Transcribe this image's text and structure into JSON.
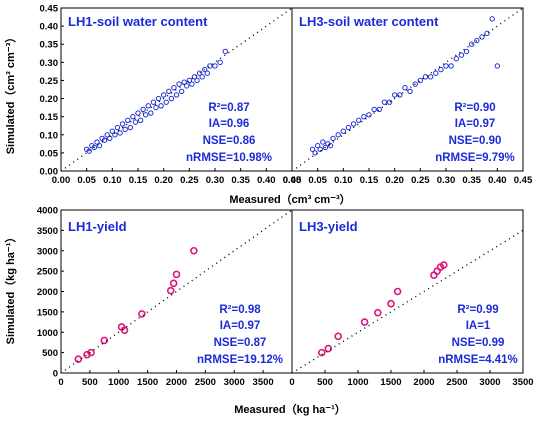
{
  "figure": {
    "top_ylabel": "Simulated（cm³ cm⁻³）",
    "top_xlabel": "Measured（cm³ cm⁻³）",
    "bottom_ylabel": "Simulated（kg ha⁻¹）",
    "bottom_xlabel": "Measured（kg ha⁻¹）"
  },
  "colors": {
    "soil_marker": "#1f32d6",
    "yield_marker": "#e0147a",
    "text_accent": "#1a2bd8"
  },
  "chart_data": [
    {
      "type": "scatter",
      "title": "LH1-soil water content",
      "xlim": [
        0,
        0.45
      ],
      "ylim": [
        0,
        0.45
      ],
      "xticks": [
        "0.00",
        "0.05",
        "0.10",
        "0.15",
        "0.20",
        "0.25",
        "0.30",
        "0.35",
        "0.40",
        "0.45"
      ],
      "yticks": [
        "0.00",
        "0.05",
        "0.10",
        "0.15",
        "0.20",
        "0.25",
        "0.30",
        "0.35",
        "0.40",
        "0.45"
      ],
      "one_to_one_line": true,
      "stats": {
        "r2": "R²=0.87",
        "ia": "IA=0.96",
        "nse": "NSE=0.86",
        "nrmse": "nRMSE=10.98%"
      },
      "series": [
        {
          "x": [
            0.05,
            0.055,
            0.06,
            0.065,
            0.07,
            0.075,
            0.08,
            0.085,
            0.09,
            0.095,
            0.1,
            0.105,
            0.11,
            0.115,
            0.12,
            0.125,
            0.13,
            0.135,
            0.14,
            0.145,
            0.15,
            0.155,
            0.16,
            0.165,
            0.17,
            0.175,
            0.18,
            0.185,
            0.19,
            0.195,
            0.2,
            0.205,
            0.21,
            0.215,
            0.22,
            0.225,
            0.23,
            0.235,
            0.24,
            0.245,
            0.25,
            0.255,
            0.26,
            0.265,
            0.27,
            0.275,
            0.28,
            0.285,
            0.29,
            0.3,
            0.31,
            0.32
          ],
          "y": [
            0.06,
            0.055,
            0.07,
            0.065,
            0.08,
            0.07,
            0.09,
            0.085,
            0.1,
            0.09,
            0.11,
            0.1,
            0.12,
            0.105,
            0.13,
            0.115,
            0.14,
            0.12,
            0.15,
            0.135,
            0.16,
            0.14,
            0.17,
            0.155,
            0.18,
            0.16,
            0.19,
            0.175,
            0.2,
            0.18,
            0.21,
            0.19,
            0.22,
            0.2,
            0.23,
            0.21,
            0.24,
            0.22,
            0.245,
            0.235,
            0.25,
            0.24,
            0.26,
            0.25,
            0.27,
            0.26,
            0.28,
            0.27,
            0.29,
            0.29,
            0.3,
            0.33
          ]
        }
      ]
    },
    {
      "type": "scatter",
      "title": "LH3-soil water content",
      "xlim": [
        0,
        0.45
      ],
      "ylim": [
        0,
        0.45
      ],
      "xticks": [
        "0.00",
        "0.05",
        "0.10",
        "0.15",
        "0.20",
        "0.25",
        "0.30",
        "0.35",
        "0.40",
        "0.45"
      ],
      "one_to_one_line": true,
      "stats": {
        "r2": "R²=0.90",
        "ia": "IA=0.97",
        "nse": "NSE=0.90",
        "nrmse": "nRMSE=9.79%"
      },
      "series": [
        {
          "x": [
            0.04,
            0.045,
            0.05,
            0.055,
            0.06,
            0.065,
            0.07,
            0.075,
            0.08,
            0.09,
            0.1,
            0.11,
            0.12,
            0.13,
            0.14,
            0.15,
            0.16,
            0.17,
            0.18,
            0.19,
            0.2,
            0.21,
            0.22,
            0.23,
            0.24,
            0.25,
            0.26,
            0.27,
            0.28,
            0.29,
            0.3,
            0.31,
            0.32,
            0.33,
            0.34,
            0.35,
            0.36,
            0.37,
            0.38,
            0.39,
            0.4
          ],
          "y": [
            0.06,
            0.05,
            0.07,
            0.06,
            0.08,
            0.065,
            0.075,
            0.07,
            0.09,
            0.1,
            0.11,
            0.12,
            0.13,
            0.14,
            0.15,
            0.155,
            0.17,
            0.17,
            0.19,
            0.19,
            0.21,
            0.21,
            0.23,
            0.22,
            0.24,
            0.25,
            0.26,
            0.26,
            0.27,
            0.28,
            0.29,
            0.29,
            0.31,
            0.32,
            0.33,
            0.35,
            0.36,
            0.37,
            0.38,
            0.42,
            0.29
          ]
        }
      ]
    },
    {
      "type": "scatter",
      "title": "LH1-yield",
      "xlim": [
        0,
        4000
      ],
      "ylim": [
        0,
        4000
      ],
      "xticks": [
        "0",
        "500",
        "1000",
        "1500",
        "2000",
        "2500",
        "3000",
        "3500"
      ],
      "yticks": [
        "0",
        "500",
        "1000",
        "1500",
        "2000",
        "2500",
        "3000",
        "3500",
        "4000"
      ],
      "one_to_one_line": true,
      "stats": {
        "r2": "R²=0.98",
        "ia": "IA=0.97",
        "nse": "NSE=0.87",
        "nrmse": "nRMSE=19.12%"
      },
      "series": [
        {
          "x": [
            300,
            450,
            520,
            750,
            1050,
            1100,
            1400,
            1900,
            1950,
            2000,
            2300
          ],
          "y": [
            340,
            450,
            500,
            800,
            1130,
            1050,
            1450,
            2020,
            2200,
            2420,
            3000
          ]
        }
      ]
    },
    {
      "type": "scatter",
      "title": "LH3-yield",
      "xlim": [
        0,
        3500
      ],
      "ylim": [
        0,
        4000
      ],
      "xticks": [
        "0",
        "500",
        "1000",
        "1500",
        "2000",
        "2500",
        "3000",
        "3500"
      ],
      "one_to_one_line": true,
      "stats": {
        "r2": "R²=0.99",
        "ia": "IA=1",
        "nse": "NSE=0.99",
        "nrmse": "nRMSE=4.41%"
      },
      "series": [
        {
          "x": [
            450,
            550,
            700,
            1100,
            1300,
            1500,
            1600,
            2150,
            2200,
            2250,
            2300
          ],
          "y": [
            500,
            600,
            900,
            1250,
            1480,
            1700,
            2000,
            2400,
            2500,
            2600,
            2650
          ]
        }
      ]
    }
  ]
}
